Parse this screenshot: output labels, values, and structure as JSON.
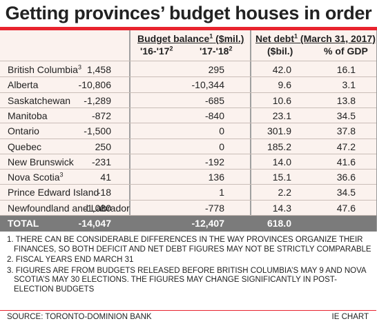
{
  "title": "Getting provinces’ budget houses in order",
  "header": {
    "group_budget": "Budget balance",
    "group_budget_sup": "1",
    "group_budget_unit": " ($mil.)",
    "col_1617": "'16-'17",
    "col_1617_sup": "2",
    "col_1718": "'17-'18",
    "col_1718_sup": "2",
    "group_debt": "Net debt",
    "group_debt_sup": "1",
    "group_debt_rest": " (March 31, 2017)",
    "col_debt": "($bil.)",
    "col_gdp": "% of GDP"
  },
  "chart_data": {
    "type": "table",
    "title": "Getting provinces’ budget houses in order",
    "columns": [
      "'16-'17",
      "'17-'18",
      "($bil.)",
      "% of GDP"
    ],
    "rows": [
      {
        "province": "British Columbia",
        "sup": "3",
        "b1617": "1,458",
        "b1718": "295",
        "debt": "42.0",
        "gdp": "16.1"
      },
      {
        "province": "Alberta",
        "sup": "",
        "b1617": "-10,806",
        "b1718": "-10,344",
        "debt": "9.6",
        "gdp": "3.1"
      },
      {
        "province": "Saskatchewan",
        "sup": "",
        "b1617": "-1,289",
        "b1718": "-685",
        "debt": "10.6",
        "gdp": "13.8"
      },
      {
        "province": "Manitoba",
        "sup": "",
        "b1617": "-872",
        "b1718": "-840",
        "debt": "23.1",
        "gdp": "34.5"
      },
      {
        "province": "Ontario",
        "sup": "",
        "b1617": "-1,500",
        "b1718": "0",
        "debt": "301.9",
        "gdp": "37.8"
      },
      {
        "province": "Quebec",
        "sup": "",
        "b1617": "250",
        "b1718": "0",
        "debt": "185.2",
        "gdp": "47.2"
      },
      {
        "province": "New Brunswick",
        "sup": "",
        "b1617": "-231",
        "b1718": "-192",
        "debt": "14.0",
        "gdp": "41.6"
      },
      {
        "province": "Nova Scotia",
        "sup": "3",
        "b1617": "41",
        "b1718": "136",
        "debt": "15.1",
        "gdp": "36.6"
      },
      {
        "province": "Prince Edward Island",
        "sup": "",
        "b1617": "-18",
        "b1718": "1",
        "debt": "2.2",
        "gdp": "34.5"
      },
      {
        "province": "Newfoundland and Labrador",
        "sup": "",
        "b1617": "-1,080",
        "b1718": "-778",
        "debt": "14.3",
        "gdp": "47.6"
      }
    ],
    "total": {
      "label": "TOTAL",
      "b1617": "-14,047",
      "b1718": "-12,407",
      "debt": "618.0",
      "gdp": ""
    }
  },
  "notes": [
    "1. THERE CAN BE CONSIDERABLE DIFFERENCES IN THE WAY PROVINCES ORGANIZE THEIR FINANCES, SO BOTH DEFICIT AND NET DEBT FIGURES MAY NOT BE STRICTLY COMPARABLE",
    "2. FISCAL YEARS END MARCH 31",
    "3. FIGURES ARE FROM BUDGETS RELEASED BEFORE BRITISH COLUMBIA’S MAY 9 AND NOVA SCOTIA’S MAY 30 ELECTIONS. THE FIGURES MAY CHANGE SIGNIFICANTLY IN POST-ELECTION BUDGETS"
  ],
  "source": "SOURCE: TORONTO-DOMINION BANK",
  "credit": "IE CHART",
  "colors": {
    "accent": "#e8232e",
    "table_bg": "#fbf2ee",
    "total_bg": "#7b7b7b"
  }
}
